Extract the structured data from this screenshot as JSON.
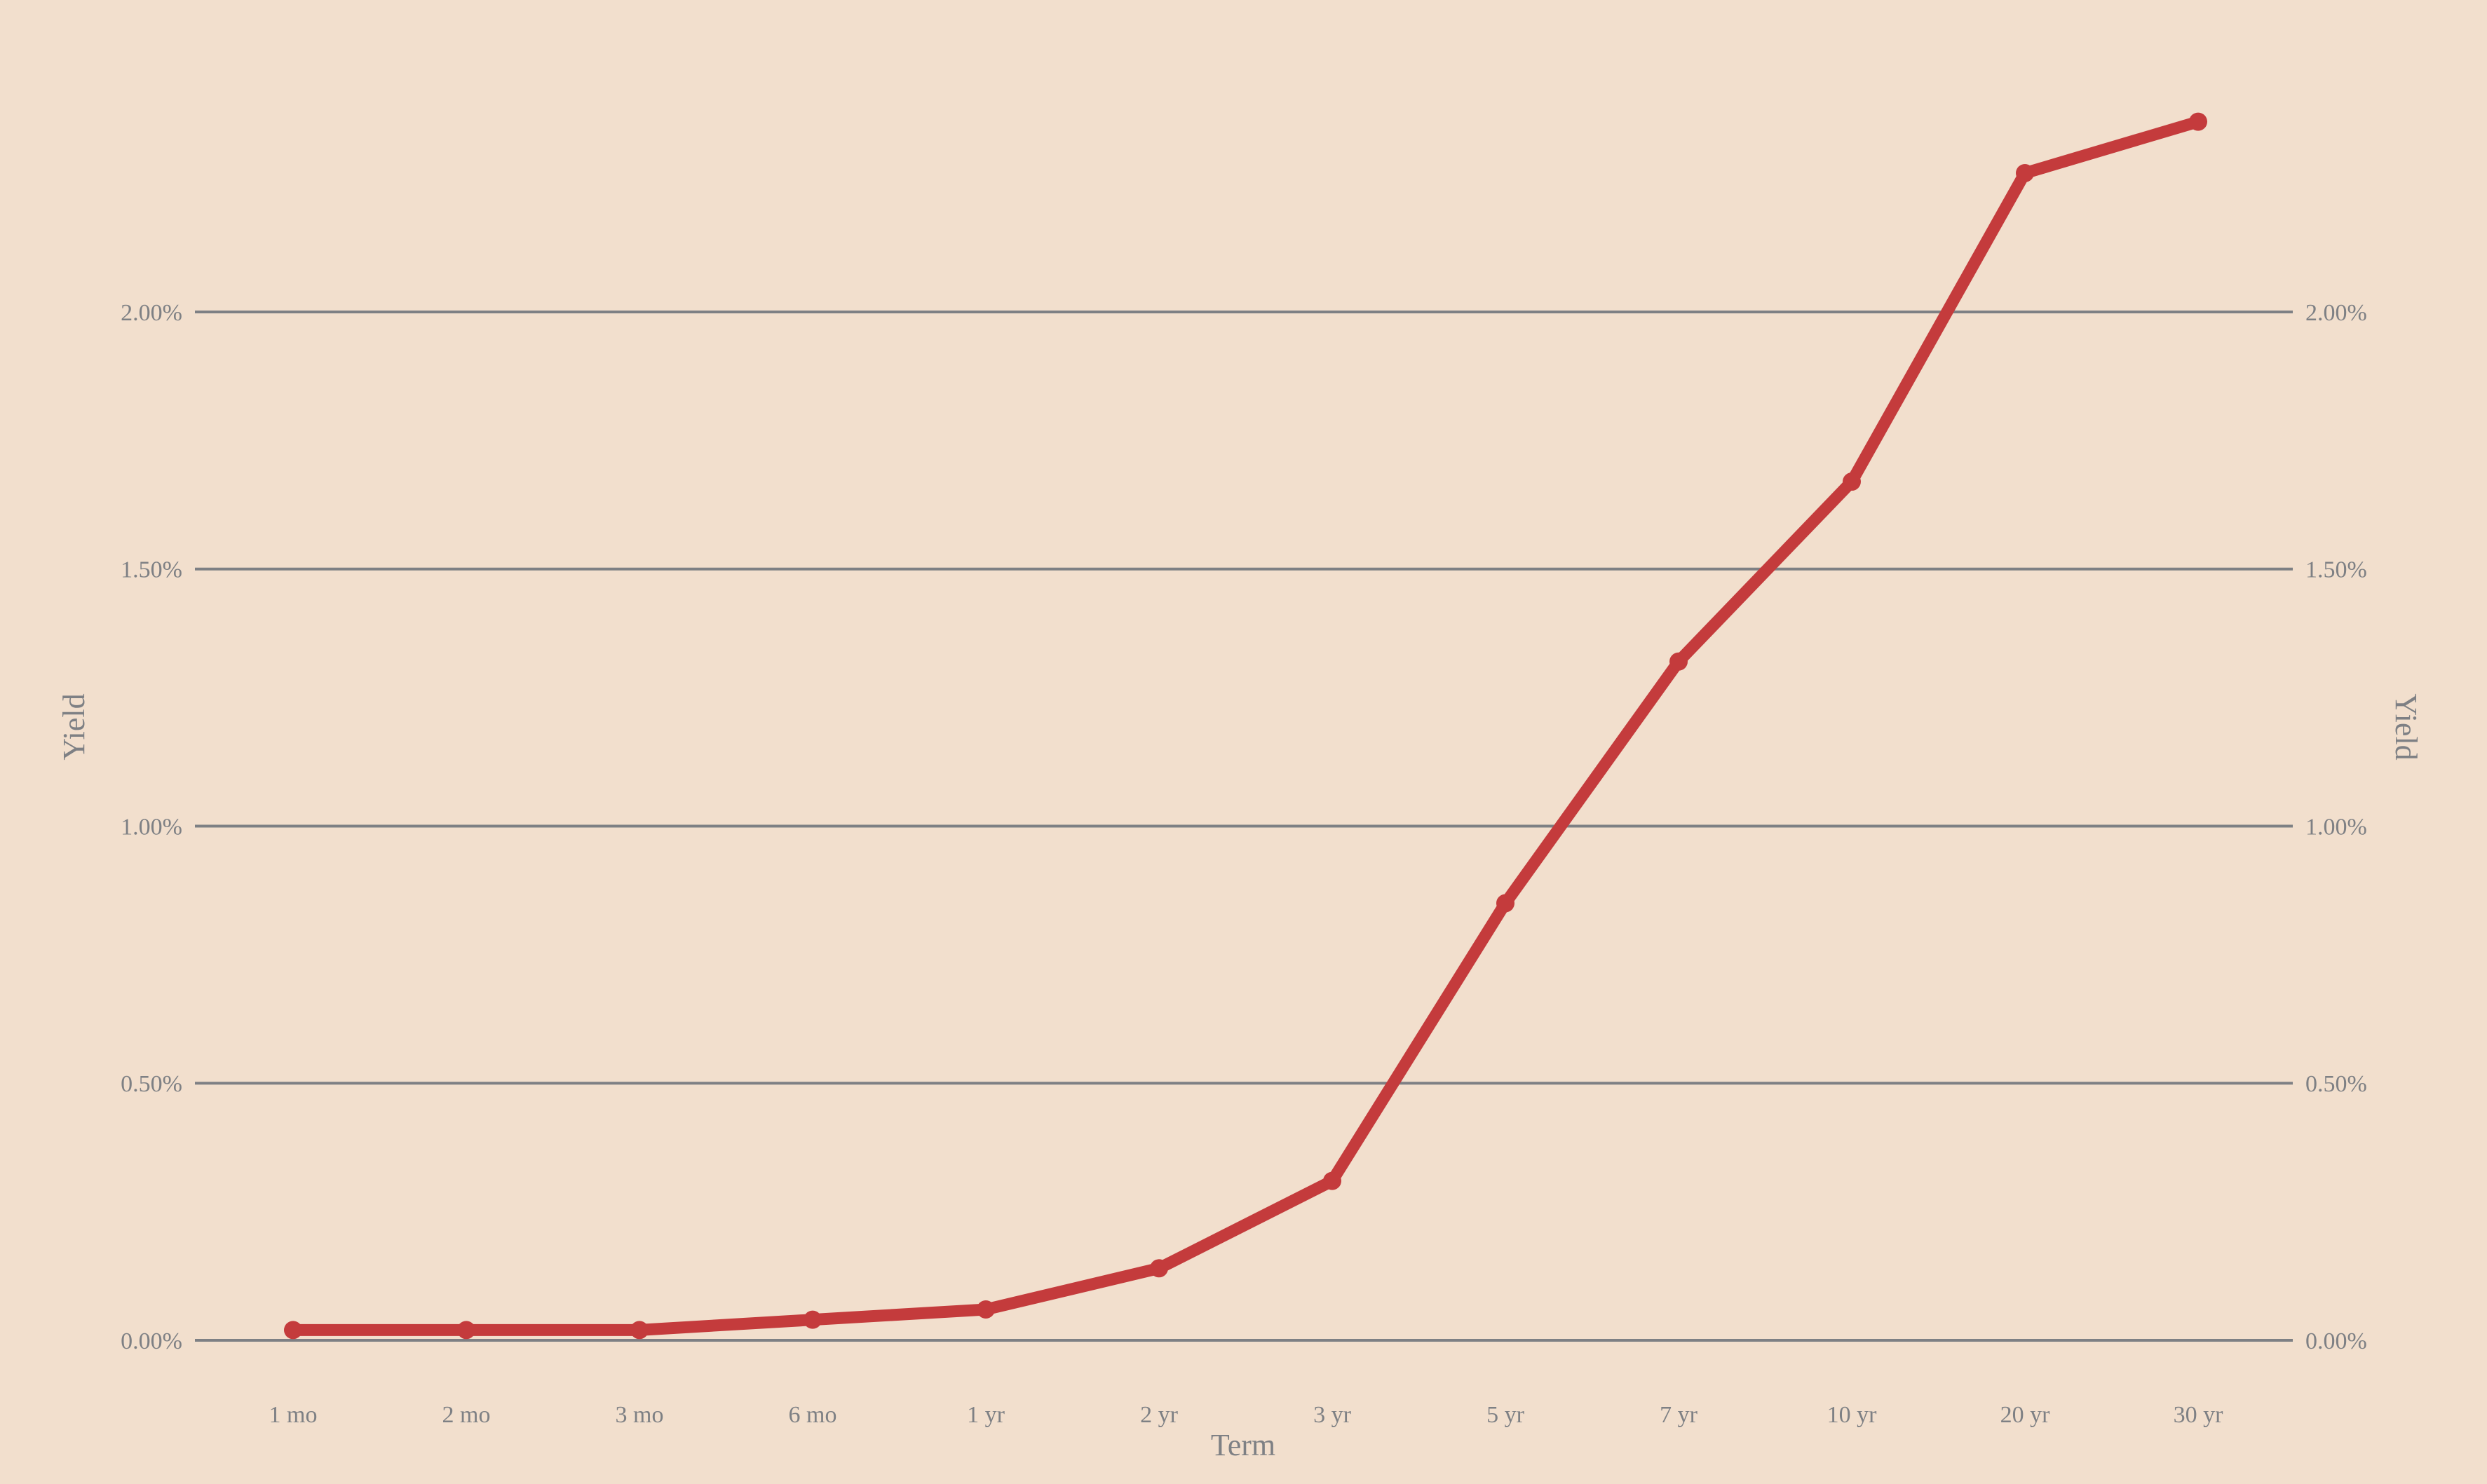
{
  "axis_titles": {
    "left": "Yield",
    "right": "Yield",
    "bottom": "Term"
  },
  "chart_data": {
    "type": "line",
    "title": "",
    "categories": [
      "1 mo",
      "2 mo",
      "3 mo",
      "6 mo",
      "1 yr",
      "2 yr",
      "3 yr",
      "5 yr",
      "7 yr",
      "10 yr",
      "20 yr",
      "30 yr"
    ],
    "series": [
      {
        "name": "Yield",
        "values": [
          0.02,
          0.02,
          0.02,
          0.04,
          0.06,
          0.14,
          0.31,
          0.85,
          1.32,
          1.67,
          2.27,
          2.37
        ]
      }
    ],
    "xlabel": "Term",
    "ylabel_left": "Yield",
    "ylabel_right": "Yield",
    "y_ticks": [
      {
        "value": 0.0,
        "label": "0.00%"
      },
      {
        "value": 0.5,
        "label": "0.50%"
      },
      {
        "value": 1.0,
        "label": "1.00%"
      },
      {
        "value": 1.5,
        "label": "1.50%"
      },
      {
        "value": 2.0,
        "label": "2.00%"
      }
    ],
    "ylim": [
      0,
      2.6
    ],
    "grid": "horizontal-only",
    "legend": "none",
    "marker": "circle",
    "value_unit": "percent",
    "colors": {
      "line": "#c43b3c",
      "grid": "#7e8084",
      "text": "#7e8084",
      "background": "#f2dfcd"
    }
  }
}
